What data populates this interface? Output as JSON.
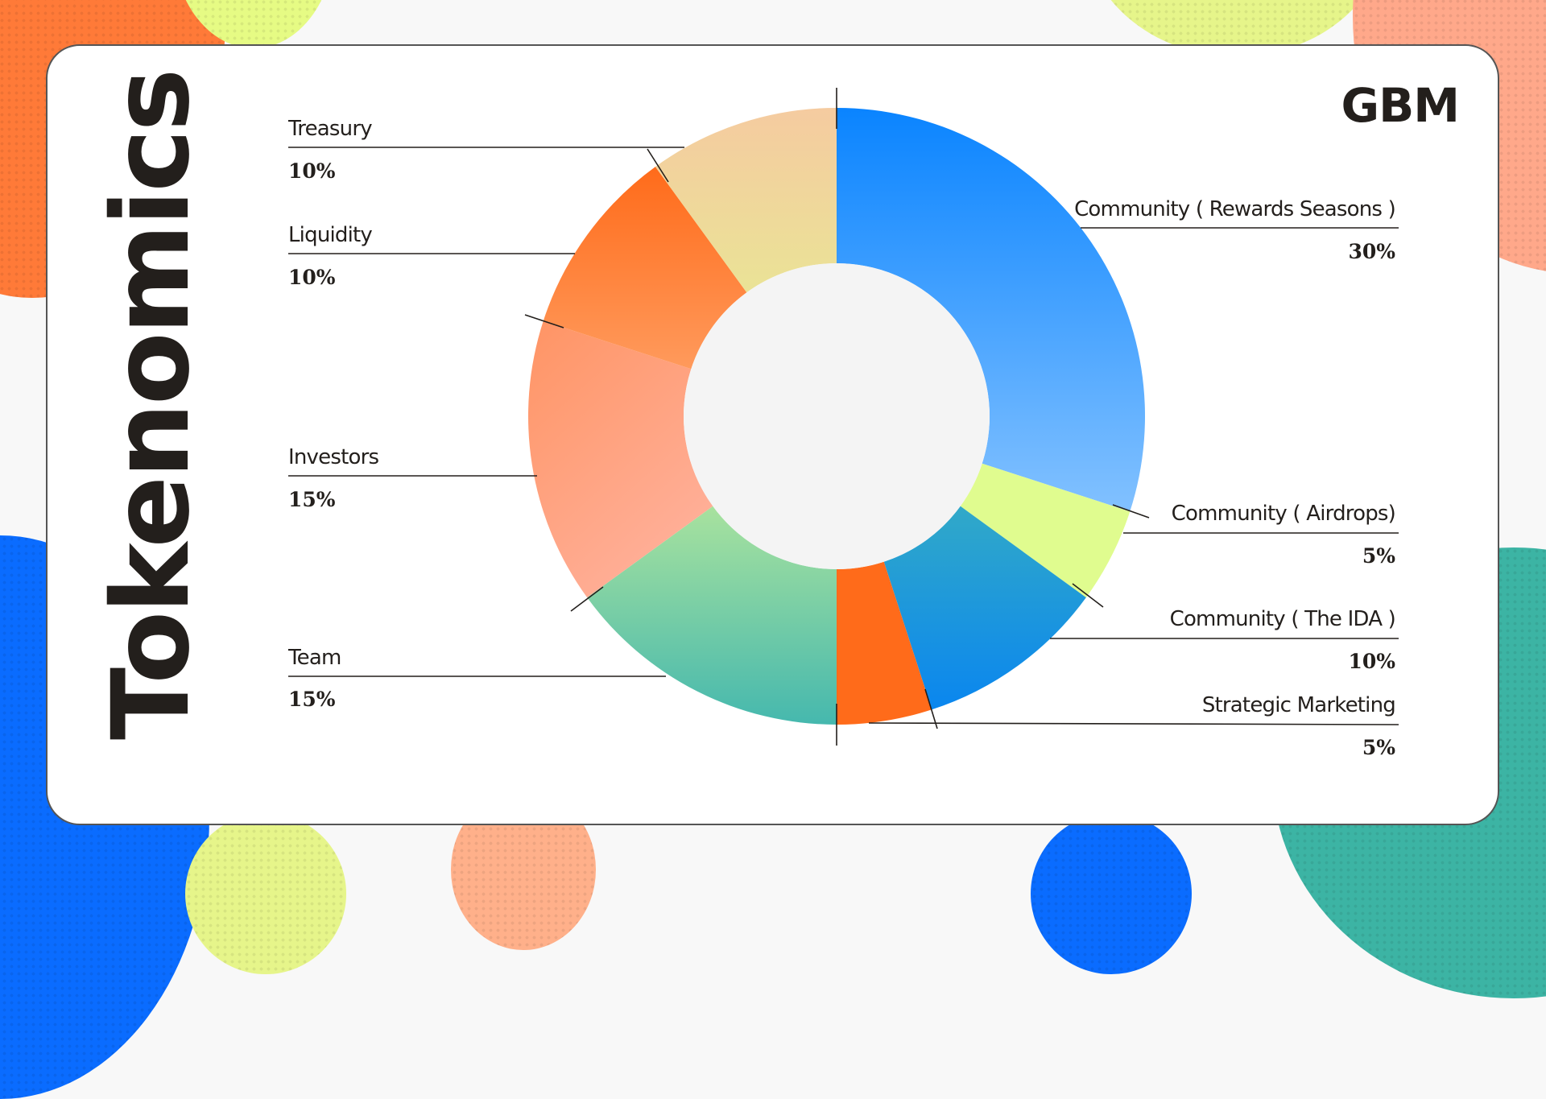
{
  "slide": {
    "title": "Tokenomics",
    "logo": "ɃBM",
    "logo_text": "GBM",
    "brand_colors": {
      "ink": "#231f1c",
      "blue": "#0a84ff",
      "orange": "#ff6b1a",
      "lime": "#e0fc8f",
      "teal": "#45b8ae",
      "salmon": "#ffa07a"
    }
  },
  "labels": {
    "treasury": {
      "name": "Treasury",
      "pct": "10%"
    },
    "liquidity": {
      "name": "Liquidity",
      "pct": "10%"
    },
    "investors": {
      "name": "Investors",
      "pct": "15%"
    },
    "team": {
      "name": "Team",
      "pct": "15%"
    },
    "rewards": {
      "name": "Community ( Rewards Seasons )",
      "pct": "30%"
    },
    "airdrops": {
      "name": "Community ( Airdrops)",
      "pct": "5%"
    },
    "ida": {
      "name": "Community ( The IDA )",
      "pct": "10%"
    },
    "marketing": {
      "name": "Strategic Marketing",
      "pct": "5%"
    }
  },
  "chart_data": {
    "type": "pie",
    "subtype": "donut",
    "title": "Tokenomics",
    "categories": [
      "Community ( Rewards Seasons )",
      "Community ( Airdrops)",
      "Community ( The IDA )",
      "Strategic Marketing",
      "Team",
      "Investors",
      "Liquidity",
      "Treasury"
    ],
    "values": [
      30,
      5,
      10,
      5,
      15,
      15,
      10,
      10
    ],
    "unit": "%",
    "start_angle": "12 o'clock",
    "direction": "clockwise",
    "colors": [
      [
        "#0a84ff",
        "#82c1ff"
      ],
      [
        "#e0fc8f",
        "#e0fc8f"
      ],
      [
        "#31a9c8",
        "#0a86ef"
      ],
      [
        "#ff6b1a",
        "#ff6b1a"
      ],
      [
        "#a8e29e",
        "#45b8ae"
      ],
      [
        "#ff9464",
        "#ffb09a"
      ],
      [
        "#ff6b1a",
        "#ff9a5c"
      ],
      [
        "#f5cba0",
        "#eae396"
      ]
    ],
    "inner_fill": "#f4f4f4",
    "legend_position": "leader-line labels left and right"
  }
}
